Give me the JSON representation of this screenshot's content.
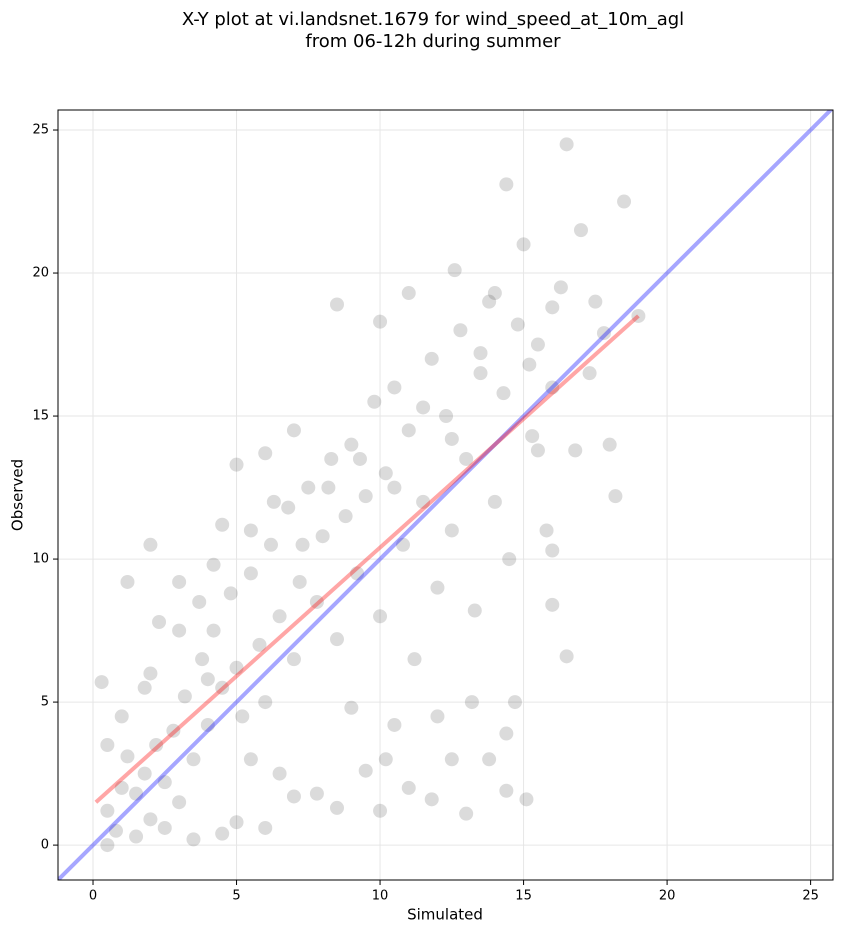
{
  "chart_data": {
    "type": "scatter",
    "title": [
      "X-Y plot at vi.landsnet.1679 for wind_speed_at_10m_agl",
      "from 06-12h during summer"
    ],
    "x_label": "Simulated",
    "y_label": "Observed",
    "xlim": [
      -1.22,
      25.78
    ],
    "ylim": [
      -1.22,
      25.7
    ],
    "xticks": [
      0,
      5,
      10,
      15,
      20,
      25
    ],
    "yticks": [
      0,
      5,
      10,
      15,
      20,
      25
    ],
    "grid": true,
    "series": [
      {
        "color": "#000000",
        "x": [
          0.5,
          0.8,
          1,
          1.2,
          1.5,
          1.8,
          2,
          2.2,
          2.5,
          2.8,
          3,
          3.2,
          3.5,
          3.8,
          4,
          4.2,
          4.5,
          4.8,
          5,
          5.2,
          5.5,
          5.8,
          6,
          6.2,
          6.5,
          6.8,
          7,
          7.2,
          7.5,
          7.8,
          8,
          8.3,
          8.5,
          8.8,
          9,
          9.2,
          9.5,
          9.8,
          10,
          10.2,
          10.5,
          10.8,
          11,
          11.2,
          11.5,
          11.8,
          12,
          12.3,
          12.5,
          12.8,
          13,
          13.3,
          13.5,
          13.8,
          14,
          14.3,
          14.5,
          14.8,
          15,
          15.3,
          15.5,
          15.8,
          16,
          16.3,
          16.5,
          16.8,
          17,
          17.3,
          17.5,
          18,
          18.5,
          18.2,
          19,
          14.4,
          16.5,
          13,
          15.1,
          10,
          11.8,
          8.5,
          12.6,
          2,
          0.3,
          1.2,
          3,
          4.5,
          5,
          6,
          7,
          0.5,
          1.5,
          2.5,
          3.5,
          4.5,
          5,
          6,
          7,
          7.8,
          8.5,
          9.5,
          10.2,
          11,
          12.5,
          13.8,
          14.4,
          14.4,
          10.5,
          9,
          12,
          13.2,
          14.7,
          2,
          3,
          4,
          5.5,
          6.5,
          1,
          0.5,
          1.8,
          2.3,
          3.7,
          4.2,
          5.5,
          6.3,
          7.3,
          8.2,
          9.3,
          10.5,
          11.5,
          12.5,
          13.5,
          10,
          11,
          14,
          15.2,
          16,
          17.8,
          16,
          16,
          15.5
        ],
        "y": [
          1.2,
          0.5,
          2,
          3.1,
          1.8,
          2.5,
          0.9,
          3.5,
          2.2,
          4,
          1.5,
          5.2,
          3,
          6.5,
          4.2,
          7.5,
          5.5,
          8.8,
          6.2,
          4.5,
          9.5,
          7,
          5,
          10.5,
          8,
          11.8,
          6.5,
          9.2,
          12.5,
          8.5,
          10.8,
          13.5,
          7.2,
          11.5,
          14,
          9.5,
          12.2,
          15.5,
          8,
          13,
          16,
          10.5,
          14.5,
          6.5,
          12,
          17,
          9,
          15,
          11,
          18,
          13.5,
          8.2,
          16.5,
          19,
          12,
          15.8,
          10,
          18.2,
          21,
          14.3,
          17.5,
          11,
          16,
          19.5,
          24.5,
          13.8,
          21.5,
          16.5,
          19,
          14,
          22.5,
          12.2,
          18.5,
          23.1,
          6.6,
          1.1,
          1.6,
          1.2,
          1.6,
          18.9,
          20.1,
          10.5,
          5.7,
          9.2,
          9.2,
          11.2,
          13.3,
          13.7,
          14.5,
          0,
          0.3,
          0.6,
          0.2,
          0.4,
          0.8,
          0.6,
          1.7,
          1.8,
          1.3,
          2.6,
          3,
          2,
          3,
          3,
          1.9,
          3.9,
          4.2,
          4.8,
          4.5,
          5,
          5,
          6,
          7.5,
          5.8,
          3,
          2.5,
          4.5,
          3.5,
          5.5,
          7.8,
          8.5,
          9.8,
          11,
          12,
          10.5,
          12.5,
          13.5,
          12.5,
          15.3,
          14.2,
          17.2,
          18.3,
          19.3,
          19.3,
          16.8,
          18.8,
          17.9,
          10.3,
          8.4,
          13.8
        ]
      }
    ],
    "lines": [
      {
        "color": "#0000ff",
        "x": [
          -1.22,
          25.78
        ],
        "y": [
          -1.22,
          25.78
        ]
      },
      {
        "color": "#ff0000",
        "x": [
          0.1,
          19
        ],
        "y": [
          1.5,
          18.5
        ]
      }
    ]
  }
}
